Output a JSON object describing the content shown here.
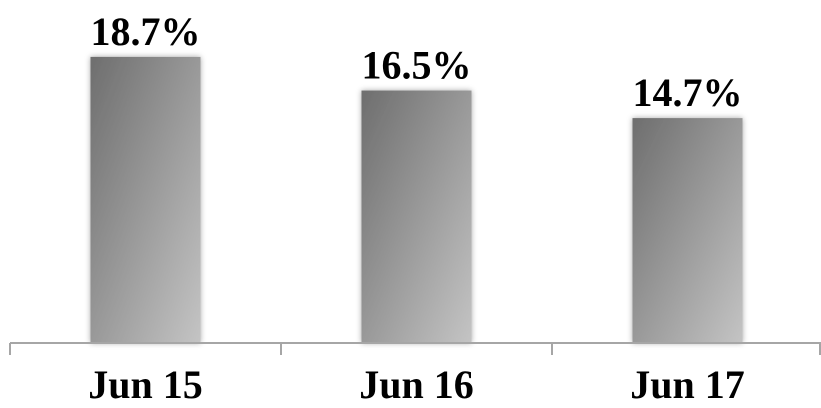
{
  "chart_data": {
    "type": "bar",
    "categories": [
      "Jun 15",
      "Jun 16",
      "Jun 17"
    ],
    "values": [
      18.7,
      16.5,
      14.7
    ],
    "value_labels": [
      "18.7%",
      "16.5%",
      "14.7%"
    ],
    "unit": "%",
    "title": "",
    "xlabel": "",
    "ylabel": "",
    "ylim": [
      0,
      20
    ],
    "grid": false,
    "legend": "none"
  },
  "colors": {
    "bar_gradient_start": "#6e6e6e",
    "bar_gradient_end": "#c4c4c4",
    "axis": "#a6a6a6",
    "text": "#000000"
  }
}
